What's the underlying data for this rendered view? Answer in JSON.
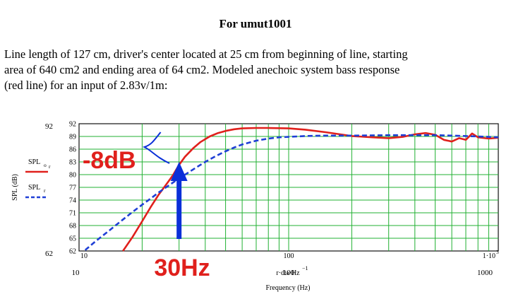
{
  "heading": "For umut1001",
  "description": [
    "Line length of 127 cm, driver's center located at 25 cm from beginning of line, starting",
    "area of 640 cm2 and ending area of 64 cm2.  Modeled anechoic system bass response",
    "(red line) for an input of 2.83v/1m:"
  ],
  "chart_data": {
    "type": "line",
    "x_scale": "log",
    "xlim": [
      10,
      1000
    ],
    "ylim": [
      62,
      92
    ],
    "grid": true,
    "y_ticks": [
      62,
      65,
      68,
      71,
      74,
      77,
      80,
      83,
      86,
      89,
      92
    ],
    "y_outer_labels": [
      "92",
      "62"
    ],
    "x_labels_top": [
      "10",
      "100",
      "1·10"
    ],
    "x_label_top_exp": "3",
    "x_labels_bottom": [
      "10",
      "100",
      "1000"
    ],
    "ylabel": "SPL (dB)",
    "xlabel_expr": "r·dω·Hz",
    "xlabel_expr_exp": "−1",
    "xlabel": "Frequency (Hz)",
    "legend": [
      {
        "label_main": "SPL",
        "label_sub": "o",
        "label_sub2": "r",
        "color": "#e0201c",
        "style": "solid"
      },
      {
        "label_main": "SPL",
        "label_sub": "r",
        "label_sub2": "",
        "color": "#1f3fd6",
        "style": "dashed"
      }
    ],
    "series": [
      {
        "color": "#e0201c",
        "style": "solid",
        "x": [
          16.2,
          18,
          20,
          22,
          24,
          26,
          28,
          30,
          32,
          35,
          38,
          42,
          46,
          50,
          55,
          60,
          70,
          80,
          100,
          120,
          150,
          200,
          250,
          300,
          350,
          400,
          450,
          500,
          550,
          600,
          650,
          700,
          750,
          800,
          900,
          1000
        ],
        "y": [
          62,
          65.3,
          69,
          72.4,
          75.3,
          77.6,
          79.8,
          82.3,
          84.2,
          86.2,
          87.7,
          89.0,
          89.8,
          90.3,
          90.7,
          90.9,
          91.0,
          91.0,
          90.9,
          90.6,
          90.0,
          89.1,
          88.8,
          88.6,
          88.9,
          89.5,
          89.8,
          89.4,
          88.2,
          87.8,
          88.6,
          88.2,
          89.7,
          88.8,
          88.5,
          88.7
        ]
      },
      {
        "color": "#1f3fd6",
        "style": "dashed",
        "x": [
          10.7,
          12,
          14,
          16,
          18,
          20,
          22,
          24,
          26,
          28,
          30,
          33,
          36,
          40,
          45,
          50,
          55,
          60,
          70,
          80,
          90,
          100,
          120,
          150,
          200,
          300,
          400,
          500,
          600,
          700,
          800,
          900,
          1000
        ],
        "y": [
          62.2,
          64.3,
          66.9,
          69.2,
          71.2,
          72.9,
          74.4,
          75.8,
          77.0,
          78.1,
          79.1,
          80.4,
          81.6,
          83.0,
          84.4,
          85.5,
          86.4,
          87.1,
          88.0,
          88.5,
          88.8,
          88.9,
          89.1,
          89.2,
          89.2,
          89.3,
          89.3,
          89.3,
          89.2,
          89.1,
          89.0,
          88.9,
          88.8
        ]
      }
    ],
    "annotations": [
      {
        "text": "-8dB",
        "color": "#e0201c"
      },
      {
        "text": "30Hz",
        "color": "#e0201c",
        "arrow_x": 30,
        "arrow_color": "#0a2fd8"
      }
    ],
    "bracket_y": [
      83,
      89
    ]
  }
}
